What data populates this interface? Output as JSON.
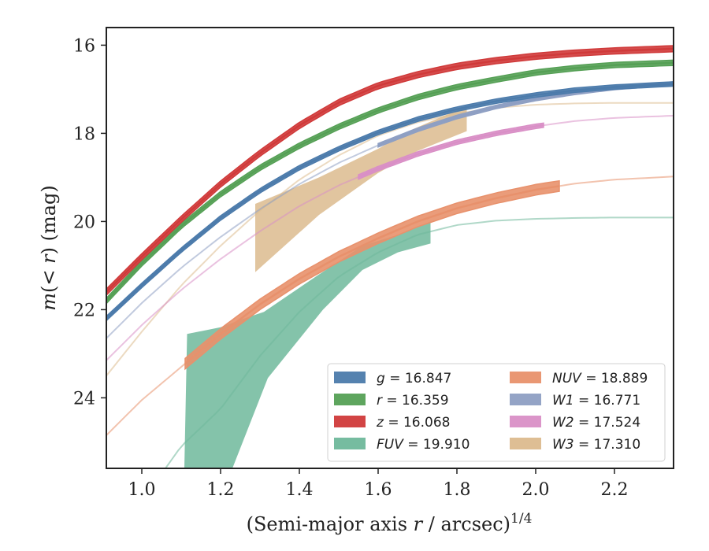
{
  "chart_data": {
    "type": "line",
    "xlabel_main": "(Semi-major axis ",
    "xlabel_var": "r",
    "xlabel_rest": " / arcsec)",
    "xlabel_sup": "1/4",
    "ylabel_pre": "m(< ",
    "ylabel_var": "r",
    "ylabel_post": ") (mag)",
    "xlim": [
      0.91,
      2.35
    ],
    "ylim": [
      25.6,
      15.6
    ],
    "y_inverted": true,
    "xticks": [
      1.0,
      1.2,
      1.4,
      1.6,
      1.8,
      2.0,
      2.2
    ],
    "xtick_labels": [
      "1.0",
      "1.2",
      "1.4",
      "1.6",
      "1.8",
      "2.0",
      "2.2"
    ],
    "yticks": [
      16,
      18,
      20,
      22,
      24
    ],
    "ytick_labels": [
      "16",
      "18",
      "20",
      "22",
      "24"
    ],
    "legend_position": "lower-right",
    "series": [
      {
        "name": "g = 16.847",
        "name_var": "g",
        "name_value": "16.847",
        "color": "#4c7bab",
        "x": [
          0.91,
          1.0,
          1.1,
          1.2,
          1.3,
          1.4,
          1.5,
          1.6,
          1.7,
          1.8,
          1.9,
          2.0,
          2.1,
          2.2,
          2.35
        ],
        "y": [
          22.2,
          21.45,
          20.65,
          19.92,
          19.3,
          18.78,
          18.35,
          17.98,
          17.68,
          17.45,
          17.27,
          17.13,
          17.02,
          16.95,
          16.88
        ],
        "band": 0.05,
        "solid_until": 2.35
      },
      {
        "name": "r = 16.359",
        "name_var": "r",
        "name_value": "16.359",
        "color": "#55a055",
        "x": [
          0.91,
          1.0,
          1.1,
          1.2,
          1.3,
          1.4,
          1.5,
          1.6,
          1.7,
          1.8,
          1.9,
          2.0,
          2.1,
          2.2,
          2.35
        ],
        "y": [
          21.8,
          20.95,
          20.1,
          19.38,
          18.78,
          18.28,
          17.85,
          17.48,
          17.18,
          16.95,
          16.78,
          16.62,
          16.52,
          16.45,
          16.4
        ],
        "band": 0.06,
        "solid_until": 2.35
      },
      {
        "name": "z = 16.068",
        "name_var": "z",
        "name_value": "16.068",
        "color": "#d03a3a",
        "x": [
          0.91,
          1.0,
          1.1,
          1.2,
          1.3,
          1.4,
          1.5,
          1.6,
          1.7,
          1.8,
          1.9,
          2.0,
          2.1,
          2.2,
          2.35
        ],
        "y": [
          21.6,
          20.8,
          19.95,
          19.15,
          18.45,
          17.82,
          17.3,
          16.92,
          16.67,
          16.48,
          16.35,
          16.25,
          16.18,
          16.13,
          16.08
        ],
        "band": 0.07,
        "solid_until": 2.35
      },
      {
        "name": "FUV = 19.910",
        "name_var": "FUV",
        "name_value": "19.910",
        "color": "#6fb89b",
        "x": [
          1.06,
          1.1,
          1.2,
          1.3,
          1.4,
          1.5,
          1.6,
          1.7,
          1.8,
          1.9,
          2.0,
          2.1,
          2.2,
          2.35
        ],
        "y": [
          25.6,
          25.1,
          24.25,
          23.05,
          22.05,
          21.25,
          20.7,
          20.3,
          20.08,
          19.98,
          19.94,
          19.92,
          19.91,
          19.91
        ],
        "band_polygon": {
          "upper_x": [
            1.108,
            1.115,
            1.2,
            1.26,
            1.31,
            1.45,
            1.56,
            1.65,
            1.733,
            1.733
          ],
          "upper_y": [
            25.6,
            22.55,
            22.4,
            22.2,
            22.05,
            21.2,
            20.55,
            20.3,
            20.0,
            20.5
          ],
          "lower_x": [
            1.733,
            1.65,
            1.56,
            1.46,
            1.32,
            1.23,
            1.108
          ],
          "lower_y": [
            20.5,
            20.7,
            21.1,
            22.0,
            23.55,
            25.6,
            25.6
          ]
        },
        "solid_until": 1.733
      },
      {
        "name": "NUV = 18.889",
        "name_var": "NUV",
        "name_value": "18.889",
        "color": "#e8916c",
        "x": [
          0.91,
          1.0,
          1.1,
          1.2,
          1.3,
          1.4,
          1.5,
          1.6,
          1.7,
          1.8,
          1.9,
          2.0,
          2.1,
          2.2,
          2.35
        ],
        "y": [
          24.85,
          24.05,
          23.3,
          22.55,
          21.88,
          21.3,
          20.8,
          20.38,
          20.0,
          19.7,
          19.47,
          19.28,
          19.14,
          19.05,
          18.98
        ],
        "band": 0.12,
        "solid_start": 1.11,
        "solid_until": 2.06
      },
      {
        "name": "W1 = 16.771",
        "name_var": "W1",
        "name_value": "16.771",
        "color": "#8e9fc3",
        "x": [
          0.91,
          1.0,
          1.1,
          1.2,
          1.3,
          1.4,
          1.5,
          1.6,
          1.7,
          1.8,
          1.9,
          2.0,
          2.1,
          2.2,
          2.35
        ],
        "y": [
          22.65,
          21.85,
          21.05,
          20.35,
          19.72,
          19.15,
          18.67,
          18.27,
          17.92,
          17.63,
          17.4,
          17.22,
          17.08,
          16.97,
          16.87
        ],
        "band": 0.04,
        "solid_start": 1.6,
        "solid_until": 2.35
      },
      {
        "name": "W2 = 17.524",
        "name_var": "W2",
        "name_value": "17.524",
        "color": "#d98fc6",
        "x": [
          0.91,
          1.0,
          1.1,
          1.2,
          1.3,
          1.4,
          1.5,
          1.6,
          1.7,
          1.8,
          1.9,
          2.0,
          2.1,
          2.2,
          2.35
        ],
        "y": [
          23.15,
          22.35,
          21.55,
          20.85,
          20.22,
          19.65,
          19.18,
          18.8,
          18.47,
          18.2,
          18.0,
          17.84,
          17.72,
          17.65,
          17.6
        ],
        "band": 0.05,
        "solid_start": 1.55,
        "solid_until": 2.02
      },
      {
        "name": "W3 = 17.310",
        "name_var": "W3",
        "name_value": "17.310",
        "color": "#dcbb8e",
        "x": [
          0.91,
          1.0,
          1.1,
          1.2,
          1.3,
          1.4,
          1.5,
          1.6,
          1.7,
          1.8,
          1.9,
          2.0,
          2.1,
          2.2,
          2.35
        ],
        "y": [
          23.5,
          22.5,
          21.45,
          20.55,
          19.75,
          19.05,
          18.5,
          18.05,
          17.75,
          17.55,
          17.42,
          17.35,
          17.32,
          17.31,
          17.31
        ],
        "band_polygon": {
          "upper_x": [
            1.288,
            1.45,
            1.6,
            1.69,
            1.825,
            1.825
          ],
          "upper_y": [
            19.6,
            19.0,
            18.35,
            17.9,
            17.38,
            17.95
          ],
          "lower_x": [
            1.825,
            1.7,
            1.6,
            1.45,
            1.288
          ],
          "lower_y": [
            17.95,
            18.4,
            18.9,
            19.85,
            21.15
          ]
        },
        "solid_until": 1.825
      }
    ]
  }
}
